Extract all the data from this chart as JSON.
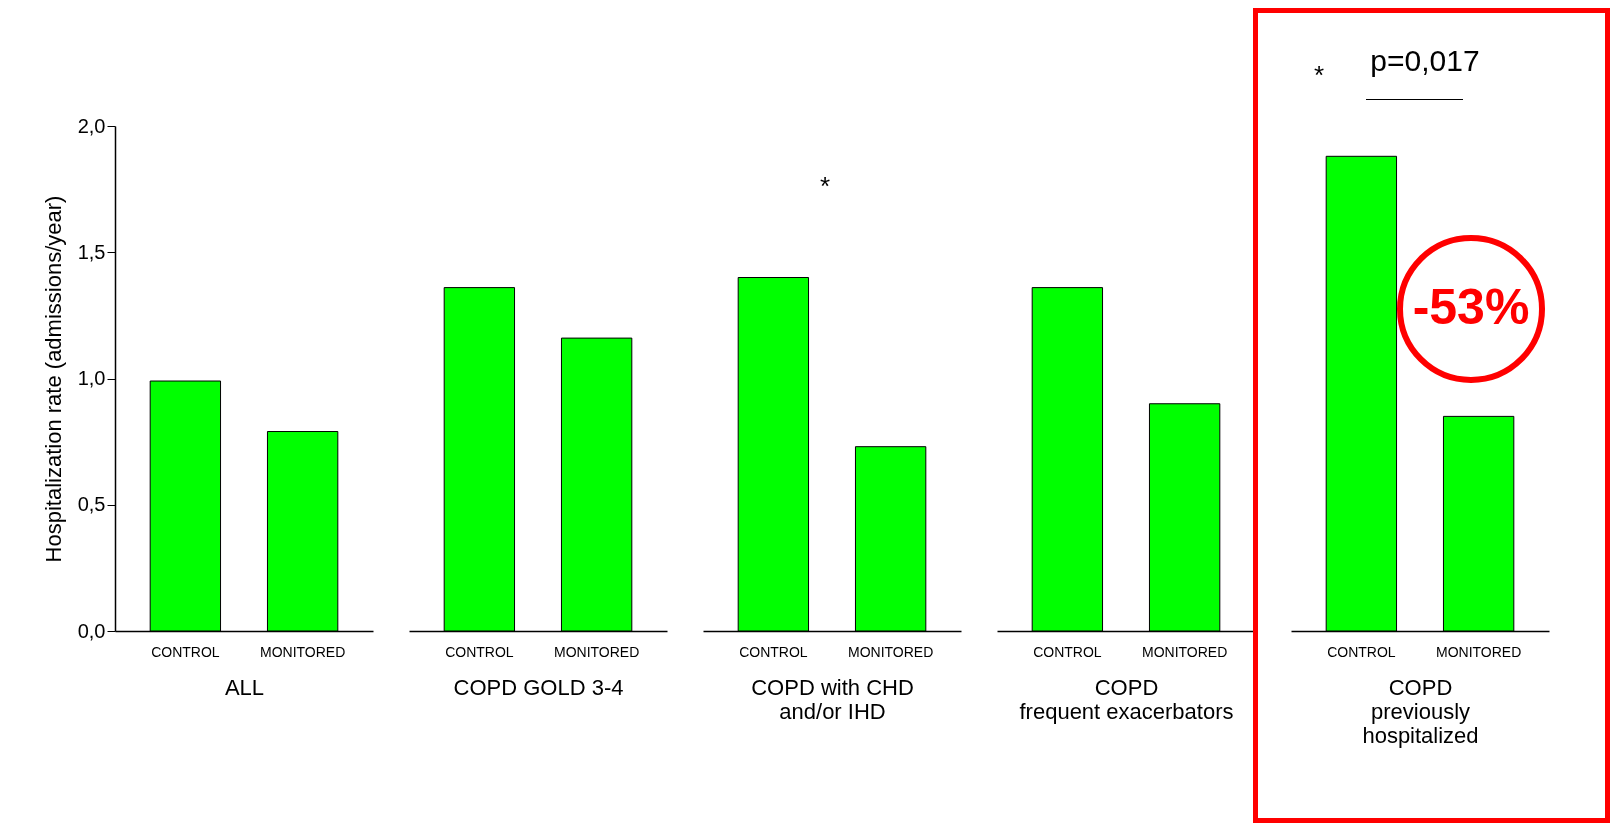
{
  "chart_data": [
    {
      "type": "bar",
      "categories": [
        "CONTROL",
        "MONITORED"
      ],
      "xlabel": "ALL",
      "ylabel": "Hospitalization rate (admissions/year)",
      "ylim": [
        0,
        2
      ],
      "yticks": [
        {
          "value": 0,
          "label": "0,0"
        },
        {
          "value": 0.5,
          "label": "0,5"
        },
        {
          "value": 1,
          "label": "1,0"
        },
        {
          "value": 1.5,
          "label": "1,5"
        },
        {
          "value": 2,
          "label": "2,0"
        }
      ],
      "grid": false,
      "legend": false,
      "series": [
        {
          "color": "#00ff00",
          "values": [
            0.99,
            0.79
          ]
        }
      ]
    },
    {
      "type": "bar",
      "categories": [
        "CONTROL",
        "MONITORED"
      ],
      "xlabel": "COPD GOLD 3-4",
      "ylim": [
        0,
        2
      ],
      "tick_labels": "x",
      "grid": false,
      "legend": false,
      "series": [
        {
          "color": "#00ff00",
          "values": [
            1.36,
            1.16
          ]
        }
      ]
    },
    {
      "type": "bar",
      "categories": [
        "CONTROL",
        "MONITORED"
      ],
      "xlabel": "COPD with CHD\nand/or IHD",
      "ylim": [
        0,
        2
      ],
      "tick_labels": "x",
      "grid": false,
      "legend": false,
      "annotations": [
        "*"
      ],
      "series": [
        {
          "color": "#00ff00",
          "values": [
            1.4,
            0.73
          ]
        }
      ]
    },
    {
      "type": "bar",
      "categories": [
        "CONTROL",
        "MONITORED"
      ],
      "xlabel": "COPD\nfrequent exacerbators",
      "ylim": [
        0,
        2
      ],
      "tick_labels": "x",
      "grid": false,
      "legend": false,
      "series": [
        {
          "color": "#00ff00",
          "values": [
            1.36,
            0.9
          ]
        }
      ]
    },
    {
      "type": "bar",
      "categories": [
        "CONTROL",
        "MONITORED"
      ],
      "xlabel": "COPD\npreviously\nhospitalized",
      "ylim": [
        0,
        2
      ],
      "tick_labels": "x",
      "grid": false,
      "legend": false,
      "annotations": [
        "*",
        "p=0,017",
        "-53%"
      ],
      "series": [
        {
          "color": "#00ff00",
          "values": [
            1.88,
            0.85
          ]
        }
      ]
    }
  ]
}
